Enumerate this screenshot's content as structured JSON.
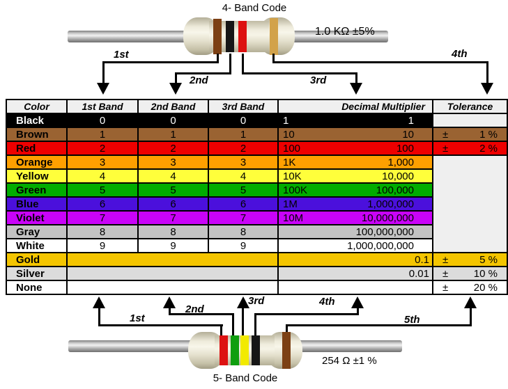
{
  "top_resistor": {
    "title": "4- Band Code",
    "value_label": "1.0 KΩ  ±5%",
    "bands": [
      "brown",
      "black",
      "red",
      "gold"
    ],
    "arrow_labels": [
      "1st",
      "2nd",
      "3rd",
      "4th"
    ]
  },
  "bottom_resistor": {
    "title": "5- Band Code",
    "value_label": "254 Ω  ±1 %",
    "bands": [
      "red",
      "green",
      "yellow",
      "black",
      "brown"
    ],
    "arrow_labels": [
      "1st",
      "2nd",
      "3rd",
      "4th",
      "5th"
    ]
  },
  "band_colors": {
    "brown": "#7c4014",
    "black": "#161616",
    "red": "#dd1111",
    "gold": "#d2a24a",
    "green": "#0f9e0f",
    "yellow": "#f2ea00"
  },
  "table": {
    "plus_minus": "±",
    "headers": [
      "Color",
      "1st Band",
      "2nd Band",
      "3rd Band",
      "Decimal Multiplier",
      "Tolerance"
    ],
    "rows": [
      {
        "name": "Black",
        "bg": "#000000",
        "fg": "#ffffff",
        "bands": [
          "0",
          "0",
          "0"
        ],
        "multPrefix": "1",
        "multValue": "1",
        "tol": {
          "kind": "empty"
        }
      },
      {
        "name": "Brown",
        "bg": "#9a6332",
        "bands": [
          "1",
          "1",
          "1"
        ],
        "multPrefix": "10",
        "multValue": "10",
        "tol": {
          "kind": "value",
          "text": "1 %"
        }
      },
      {
        "name": "Red",
        "bg": "#ee0000",
        "bands": [
          "2",
          "2",
          "2"
        ],
        "multPrefix": "100",
        "multValue": "100",
        "tol": {
          "kind": "value",
          "text": "2 %"
        }
      },
      {
        "name": "Orange",
        "bg": "#ffa000",
        "bands": [
          "3",
          "3",
          "3"
        ],
        "multPrefix": "1K",
        "multValue": "1,000",
        "tol": {
          "kind": "mergeStart",
          "span": 7
        }
      },
      {
        "name": "Yellow",
        "bg": "#ffff3b",
        "bands": [
          "4",
          "4",
          "4"
        ],
        "multPrefix": "10K",
        "multValue": "10,000",
        "tol": {
          "kind": "merged"
        }
      },
      {
        "name": "Green",
        "bg": "#00ad00",
        "bands": [
          "5",
          "5",
          "5"
        ],
        "multPrefix": "100K",
        "multValue": "100,000",
        "tol": {
          "kind": "merged"
        }
      },
      {
        "name": "Blue",
        "bg": "#4b10dc",
        "bands": [
          "6",
          "6",
          "6"
        ],
        "multPrefix": "1M",
        "multValue": "1,000,000",
        "tol": {
          "kind": "merged"
        }
      },
      {
        "name": "Violet",
        "bg": "#c903f8",
        "bands": [
          "7",
          "7",
          "7"
        ],
        "multPrefix": "10M",
        "multValue": "10,000,000",
        "tol": {
          "kind": "merged"
        }
      },
      {
        "name": "Gray",
        "bg": "#c3c3c3",
        "bands": [
          "8",
          "8",
          "8"
        ],
        "multPrefix": "",
        "multValue": "100,000,000",
        "tol": {
          "kind": "merged"
        }
      },
      {
        "name": "White",
        "bg": "#ffffff",
        "bands": [
          "9",
          "9",
          "9"
        ],
        "multPrefix": "",
        "multValue": "1,000,000,000",
        "tol": {
          "kind": "merged"
        }
      },
      {
        "name": "Gold",
        "bg": "#f4c500",
        "bands": null,
        "multPrefix": "",
        "multValue": "0.1",
        "tol": {
          "kind": "value",
          "text": "5 %"
        }
      },
      {
        "name": "Silver",
        "bg": "#dcdcdc",
        "bands": null,
        "multPrefix": "",
        "multValue": "0.01",
        "tol": {
          "kind": "value",
          "text": "10 %"
        }
      },
      {
        "name": "None",
        "bg": "#ffffff",
        "bands": null,
        "multPrefix": "",
        "multValue": "",
        "tol": {
          "kind": "value",
          "text": "20 %"
        }
      }
    ]
  }
}
